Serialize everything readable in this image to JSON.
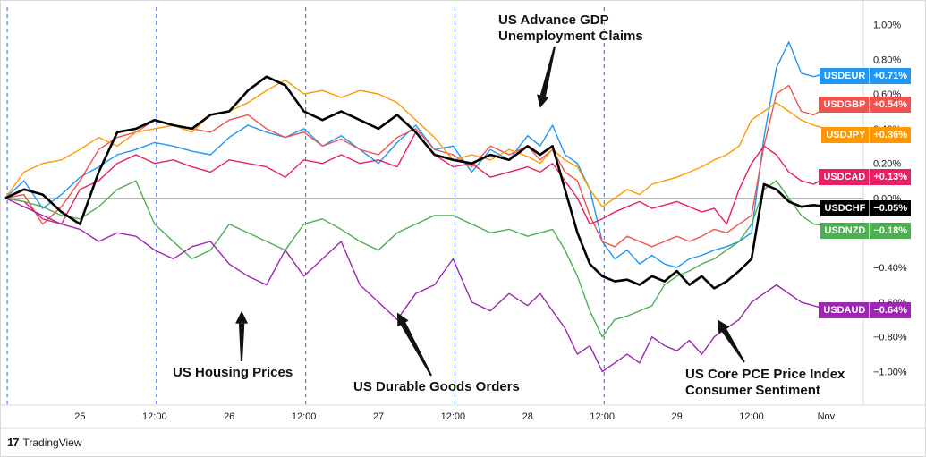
{
  "chart_data": {
    "type": "line",
    "title": "",
    "xlabel": "",
    "ylabel": "",
    "ylim": [
      -1.1,
      1.05
    ],
    "y_ticks": [
      "1.00%",
      "0.80%",
      "0.60%",
      "0.40%",
      "0.20%",
      "0.00%",
      "−0.20%",
      "−0.40%",
      "−0.60%",
      "−0.80%",
      "−1.00%"
    ],
    "y_tick_values": [
      1.0,
      0.8,
      0.6,
      0.4,
      0.2,
      0.0,
      -0.2,
      -0.4,
      -0.6,
      -0.8,
      -1.0
    ],
    "x_ticks": [
      "25",
      "12:00",
      "26",
      "12:00",
      "27",
      "12:00",
      "28",
      "12:00",
      "29",
      "12:00",
      "Nov"
    ],
    "x_tick_times": [
      12,
      24,
      36,
      48,
      60,
      72,
      84,
      96,
      108,
      120,
      132
    ],
    "x_range": [
      0,
      138
    ],
    "session_separators": [
      0.3,
      24.3,
      48.3,
      72.3,
      96.3
    ],
    "zero_line": true,
    "series": [
      {
        "name": "USDEUR",
        "value_label": "+0.71%",
        "color": "#2196f3",
        "width": 1.4,
        "t": [
          0,
          3,
          6,
          9,
          12,
          15,
          18,
          21,
          24,
          27,
          30,
          33,
          36,
          39,
          42,
          45,
          48,
          51,
          54,
          57,
          60,
          63,
          66,
          69,
          72,
          75,
          78,
          81,
          84,
          86,
          88,
          90,
          92,
          94,
          96,
          98,
          100,
          102,
          104,
          106,
          108,
          110,
          112,
          114,
          116,
          118,
          120,
          122,
          124,
          126,
          128,
          130,
          132,
          134,
          136
        ],
        "y": [
          0.0,
          0.1,
          -0.06,
          0.02,
          0.12,
          0.18,
          0.25,
          0.28,
          0.32,
          0.3,
          0.27,
          0.25,
          0.35,
          0.42,
          0.38,
          0.35,
          0.4,
          0.3,
          0.36,
          0.28,
          0.2,
          0.32,
          0.42,
          0.28,
          0.3,
          0.15,
          0.28,
          0.22,
          0.36,
          0.3,
          0.42,
          0.25,
          0.2,
          0.05,
          -0.25,
          -0.35,
          -0.3,
          -0.38,
          -0.33,
          -0.38,
          -0.4,
          -0.35,
          -0.33,
          -0.3,
          -0.28,
          -0.25,
          -0.2,
          0.35,
          0.75,
          0.9,
          0.72,
          0.7,
          0.72,
          0.7,
          0.71
        ]
      },
      {
        "name": "USDGBP",
        "value_label": "+0.54%",
        "color": "#ef5350",
        "width": 1.4,
        "t": [
          0,
          3,
          6,
          9,
          12,
          15,
          18,
          21,
          24,
          27,
          30,
          33,
          36,
          39,
          42,
          45,
          48,
          51,
          54,
          57,
          60,
          63,
          66,
          69,
          72,
          75,
          78,
          81,
          84,
          86,
          88,
          90,
          92,
          94,
          96,
          98,
          100,
          102,
          104,
          106,
          108,
          110,
          112,
          114,
          116,
          118,
          120,
          122,
          124,
          126,
          128,
          130,
          132,
          134,
          136
        ],
        "y": [
          0.0,
          0.02,
          -0.15,
          -0.05,
          0.1,
          0.28,
          0.35,
          0.38,
          0.45,
          0.42,
          0.4,
          0.38,
          0.45,
          0.48,
          0.4,
          0.35,
          0.38,
          0.3,
          0.34,
          0.28,
          0.25,
          0.35,
          0.4,
          0.28,
          0.25,
          0.18,
          0.3,
          0.25,
          0.3,
          0.22,
          0.28,
          0.15,
          0.1,
          -0.1,
          -0.25,
          -0.28,
          -0.22,
          -0.25,
          -0.28,
          -0.25,
          -0.22,
          -0.25,
          -0.22,
          -0.18,
          -0.2,
          -0.15,
          -0.1,
          0.3,
          0.6,
          0.65,
          0.5,
          0.48,
          0.52,
          0.54,
          0.54
        ]
      },
      {
        "name": "USDJPY",
        "value_label": "+0.36%",
        "color": "#ff9800",
        "width": 1.4,
        "t": [
          0,
          3,
          6,
          9,
          12,
          15,
          18,
          21,
          24,
          27,
          30,
          33,
          36,
          39,
          42,
          45,
          48,
          51,
          54,
          57,
          60,
          63,
          66,
          69,
          72,
          75,
          78,
          81,
          84,
          86,
          88,
          90,
          92,
          94,
          96,
          98,
          100,
          102,
          104,
          106,
          108,
          110,
          112,
          114,
          116,
          118,
          120,
          122,
          124,
          126,
          128,
          130,
          132,
          134,
          136
        ],
        "y": [
          0.0,
          0.15,
          0.2,
          0.22,
          0.28,
          0.35,
          0.3,
          0.38,
          0.4,
          0.42,
          0.38,
          0.48,
          0.5,
          0.55,
          0.62,
          0.68,
          0.6,
          0.62,
          0.58,
          0.62,
          0.6,
          0.55,
          0.45,
          0.35,
          0.22,
          0.25,
          0.22,
          0.28,
          0.24,
          0.2,
          0.28,
          0.22,
          0.18,
          0.05,
          -0.05,
          0.0,
          0.05,
          0.02,
          0.08,
          0.1,
          0.12,
          0.15,
          0.18,
          0.22,
          0.25,
          0.3,
          0.45,
          0.5,
          0.55,
          0.5,
          0.45,
          0.42,
          0.4,
          0.38,
          0.36
        ]
      },
      {
        "name": "USDCAD",
        "value_label": "+0.13%",
        "color": "#e91e63",
        "width": 1.4,
        "t": [
          0,
          3,
          6,
          9,
          12,
          15,
          18,
          21,
          24,
          27,
          30,
          33,
          36,
          39,
          42,
          45,
          48,
          51,
          54,
          57,
          60,
          63,
          66,
          69,
          72,
          75,
          78,
          81,
          84,
          86,
          88,
          90,
          92,
          94,
          96,
          98,
          100,
          102,
          104,
          106,
          108,
          110,
          112,
          114,
          116,
          118,
          120,
          122,
          124,
          126,
          128,
          130,
          132,
          134,
          136
        ],
        "y": [
          0.0,
          -0.02,
          -0.12,
          -0.15,
          0.05,
          0.1,
          0.2,
          0.25,
          0.2,
          0.22,
          0.18,
          0.15,
          0.22,
          0.2,
          0.18,
          0.12,
          0.22,
          0.2,
          0.25,
          0.2,
          0.22,
          0.18,
          0.38,
          0.25,
          0.18,
          0.2,
          0.12,
          0.15,
          0.18,
          0.15,
          0.2,
          0.1,
          0.0,
          -0.15,
          -0.12,
          -0.08,
          -0.05,
          -0.02,
          -0.06,
          -0.04,
          -0.02,
          -0.05,
          -0.08,
          -0.06,
          -0.15,
          0.05,
          0.2,
          0.3,
          0.25,
          0.15,
          0.1,
          0.08,
          0.12,
          0.12,
          0.13
        ]
      },
      {
        "name": "USDCHF",
        "value_label": "−0.05%",
        "color": "#000000",
        "width": 2.6,
        "t": [
          0,
          3,
          6,
          9,
          12,
          15,
          18,
          21,
          24,
          27,
          30,
          33,
          36,
          39,
          42,
          45,
          48,
          51,
          54,
          57,
          60,
          63,
          66,
          69,
          72,
          75,
          78,
          81,
          84,
          86,
          88,
          90,
          92,
          94,
          96,
          98,
          100,
          102,
          104,
          106,
          108,
          110,
          112,
          114,
          116,
          118,
          120,
          122,
          124,
          126,
          128,
          130,
          132,
          134,
          136
        ],
        "y": [
          0.0,
          0.05,
          0.02,
          -0.08,
          -0.15,
          0.15,
          0.38,
          0.4,
          0.45,
          0.42,
          0.4,
          0.48,
          0.5,
          0.62,
          0.7,
          0.65,
          0.5,
          0.45,
          0.5,
          0.45,
          0.4,
          0.48,
          0.38,
          0.25,
          0.22,
          0.2,
          0.25,
          0.22,
          0.3,
          0.25,
          0.3,
          0.05,
          -0.2,
          -0.38,
          -0.45,
          -0.48,
          -0.47,
          -0.5,
          -0.45,
          -0.48,
          -0.42,
          -0.5,
          -0.45,
          -0.52,
          -0.48,
          -0.42,
          -0.35,
          0.08,
          0.05,
          -0.02,
          -0.05,
          -0.04,
          -0.05,
          -0.05,
          -0.05
        ]
      },
      {
        "name": "USDNZD",
        "value_label": "−0.18%",
        "color": "#4caf50",
        "width": 1.4,
        "t": [
          0,
          3,
          6,
          9,
          12,
          15,
          18,
          21,
          24,
          27,
          30,
          33,
          36,
          39,
          42,
          45,
          48,
          51,
          54,
          57,
          60,
          63,
          66,
          69,
          72,
          75,
          78,
          81,
          84,
          86,
          88,
          90,
          92,
          94,
          96,
          98,
          100,
          102,
          104,
          106,
          108,
          110,
          112,
          114,
          116,
          118,
          120,
          122,
          124,
          126,
          128,
          130,
          132,
          134,
          136
        ],
        "y": [
          0.0,
          -0.02,
          -0.05,
          -0.1,
          -0.12,
          -0.05,
          0.05,
          0.1,
          -0.15,
          -0.25,
          -0.35,
          -0.3,
          -0.15,
          -0.2,
          -0.25,
          -0.3,
          -0.15,
          -0.12,
          -0.18,
          -0.25,
          -0.3,
          -0.2,
          -0.15,
          -0.1,
          -0.1,
          -0.15,
          -0.2,
          -0.18,
          -0.22,
          -0.2,
          -0.18,
          -0.3,
          -0.45,
          -0.65,
          -0.8,
          -0.7,
          -0.68,
          -0.65,
          -0.62,
          -0.5,
          -0.45,
          -0.42,
          -0.38,
          -0.35,
          -0.3,
          -0.25,
          -0.15,
          0.05,
          0.1,
          0.0,
          -0.1,
          -0.15,
          -0.16,
          -0.17,
          -0.18
        ]
      },
      {
        "name": "USDAUD",
        "value_label": "−0.64%",
        "color": "#9c27b0",
        "width": 1.4,
        "t": [
          0,
          3,
          6,
          9,
          12,
          15,
          18,
          21,
          24,
          27,
          30,
          33,
          36,
          39,
          42,
          45,
          48,
          51,
          54,
          57,
          60,
          63,
          66,
          69,
          72,
          75,
          78,
          81,
          84,
          86,
          88,
          90,
          92,
          94,
          96,
          98,
          100,
          102,
          104,
          106,
          108,
          110,
          112,
          114,
          116,
          118,
          120,
          122,
          124,
          126,
          128,
          130,
          132,
          134,
          136
        ],
        "y": [
          0.0,
          -0.05,
          -0.1,
          -0.15,
          -0.18,
          -0.25,
          -0.2,
          -0.22,
          -0.3,
          -0.35,
          -0.28,
          -0.25,
          -0.38,
          -0.45,
          -0.5,
          -0.3,
          -0.45,
          -0.35,
          -0.25,
          -0.5,
          -0.6,
          -0.7,
          -0.55,
          -0.5,
          -0.35,
          -0.6,
          -0.65,
          -0.55,
          -0.62,
          -0.55,
          -0.65,
          -0.75,
          -0.9,
          -0.85,
          -1.0,
          -0.95,
          -0.9,
          -0.95,
          -0.8,
          -0.85,
          -0.88,
          -0.82,
          -0.9,
          -0.8,
          -0.75,
          -0.7,
          -0.6,
          -0.55,
          -0.5,
          -0.55,
          -0.6,
          -0.62,
          -0.64,
          -0.64,
          -0.64
        ]
      }
    ],
    "annotations": [
      {
        "lines": [
          "US Advance GDP",
          "Unemployment Claims"
        ],
        "arrow_to": [
          86,
          0.52
        ]
      },
      {
        "lines": [
          "US Housing Prices"
        ],
        "arrow_to": [
          38,
          -0.65
        ]
      },
      {
        "lines": [
          "US Durable Goods Orders"
        ],
        "arrow_to": [
          63,
          -0.66
        ]
      },
      {
        "lines": [
          "US Core PCE Price Index",
          "Consumer Sentiment"
        ],
        "arrow_to": [
          114.5,
          -0.7
        ]
      }
    ]
  },
  "branding": {
    "logo": "17",
    "name": "TradingView"
  }
}
